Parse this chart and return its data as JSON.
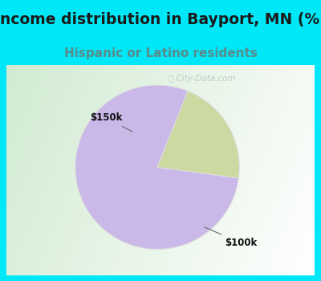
{
  "title": "Income distribution in Bayport, MN (%)",
  "subtitle": "Hispanic or Latino residents",
  "title_color": "#1a1a1a",
  "subtitle_color": "#5a8a8a",
  "outer_bg_color": "#00e8f8",
  "watermark": "City-Data.com",
  "slices": [
    {
      "label": "$100k",
      "value": 79,
      "color": "#c9b8e8"
    },
    {
      "label": "$150k",
      "value": 21,
      "color": "#ccd9a0"
    }
  ],
  "startangle": 68,
  "title_fontsize": 13.5,
  "subtitle_fontsize": 11,
  "annotation_fontsize": 8.5
}
